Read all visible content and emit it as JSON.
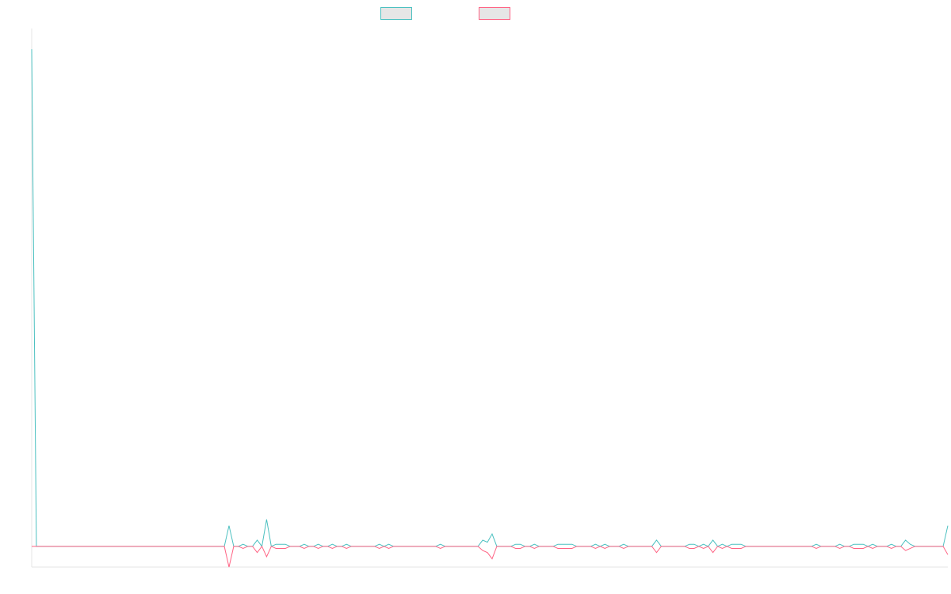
{
  "chart_data": {
    "type": "line",
    "title": "",
    "xlabel": "",
    "ylabel": "",
    "ylim": [
      -1,
      25
    ],
    "grid": false,
    "legend": "top-center",
    "series": [
      {
        "name": "",
        "color": "#4bc0c0",
        "fill": "#e6e6e6",
        "values": [
          24,
          0,
          0,
          0,
          0,
          0,
          0,
          0,
          0,
          0,
          0,
          0,
          0,
          0,
          0,
          0,
          0,
          0,
          0,
          0,
          0,
          0,
          0,
          0,
          0,
          0,
          0,
          0,
          0,
          0,
          0,
          0,
          0,
          0,
          0,
          0,
          0,
          0,
          0,
          0,
          0,
          0,
          1,
          0,
          0,
          0.1,
          0,
          0,
          0.3,
          0,
          1.3,
          0,
          0.1,
          0.1,
          0.1,
          0,
          0,
          0,
          0.1,
          0,
          0,
          0.1,
          0,
          0,
          0.1,
          0,
          0,
          0.1,
          0,
          0,
          0,
          0,
          0,
          0,
          0.1,
          0,
          0.1,
          0,
          0,
          0,
          0,
          0,
          0,
          0,
          0,
          0,
          0,
          0.1,
          0,
          0,
          0,
          0,
          0,
          0,
          0,
          0,
          0.3,
          0.2,
          0.6,
          0,
          0,
          0,
          0,
          0.1,
          0.1,
          0,
          0,
          0.1,
          0,
          0,
          0,
          0,
          0.1,
          0.1,
          0.1,
          0.1,
          0,
          0,
          0,
          0,
          0.1,
          0,
          0.1,
          0,
          0,
          0,
          0.1,
          0,
          0,
          0,
          0,
          0,
          0,
          0.3,
          0,
          0,
          0,
          0,
          0,
          0,
          0.1,
          0.1,
          0,
          0.1,
          0,
          0.3,
          0,
          0.1,
          0,
          0.1,
          0.1,
          0.1,
          0,
          0,
          0,
          0,
          0,
          0,
          0,
          0,
          0,
          0,
          0,
          0,
          0,
          0,
          0,
          0.1,
          0,
          0,
          0,
          0,
          0.1,
          0,
          0,
          0.1,
          0.1,
          0.1,
          0,
          0.1,
          0,
          0,
          0,
          0.1,
          0,
          0,
          0.3,
          0.1,
          0,
          0,
          0,
          0,
          0,
          0,
          0,
          1
        ]
      },
      {
        "name": "",
        "color": "#ff6384",
        "fill": "#e6e6e6",
        "values": [
          0,
          0,
          0,
          0,
          0,
          0,
          0,
          0,
          0,
          0,
          0,
          0,
          0,
          0,
          0,
          0,
          0,
          0,
          0,
          0,
          0,
          0,
          0,
          0,
          0,
          0,
          0,
          0,
          0,
          0,
          0,
          0,
          0,
          0,
          0,
          0,
          0,
          0,
          0,
          0,
          0,
          0,
          -1,
          0,
          0,
          -0.1,
          0,
          0,
          -0.3,
          0,
          -0.5,
          0,
          -0.1,
          -0.1,
          -0.1,
          0,
          0,
          0,
          -0.1,
          0,
          0,
          -0.1,
          0,
          0,
          -0.1,
          0,
          0,
          -0.1,
          0,
          0,
          0,
          0,
          0,
          0,
          -0.1,
          0,
          -0.1,
          0,
          0,
          0,
          0,
          0,
          0,
          0,
          0,
          0,
          0,
          -0.1,
          0,
          0,
          0,
          0,
          0,
          0,
          0,
          0,
          -0.2,
          -0.3,
          -0.6,
          0,
          0,
          0,
          0,
          -0.1,
          -0.1,
          0,
          0,
          -0.1,
          0,
          0,
          0,
          0,
          -0.1,
          -0.1,
          -0.1,
          -0.1,
          0,
          0,
          0,
          0,
          -0.1,
          0,
          -0.1,
          0,
          0,
          0,
          -0.1,
          0,
          0,
          0,
          0,
          0,
          0,
          -0.3,
          0,
          0,
          0,
          0,
          0,
          0,
          -0.1,
          -0.1,
          0,
          -0.1,
          0,
          -0.3,
          0,
          -0.1,
          0,
          -0.1,
          -0.1,
          -0.1,
          0,
          0,
          0,
          0,
          0,
          0,
          0,
          0,
          0,
          0,
          0,
          0,
          0,
          0,
          0,
          -0.1,
          0,
          0,
          0,
          0,
          -0.1,
          0,
          0,
          -0.1,
          -0.1,
          -0.1,
          0,
          -0.1,
          0,
          0,
          0,
          -0.1,
          0,
          0,
          -0.2,
          -0.1,
          0,
          0,
          0,
          0,
          0,
          0,
          0,
          -0.4
        ]
      }
    ]
  }
}
